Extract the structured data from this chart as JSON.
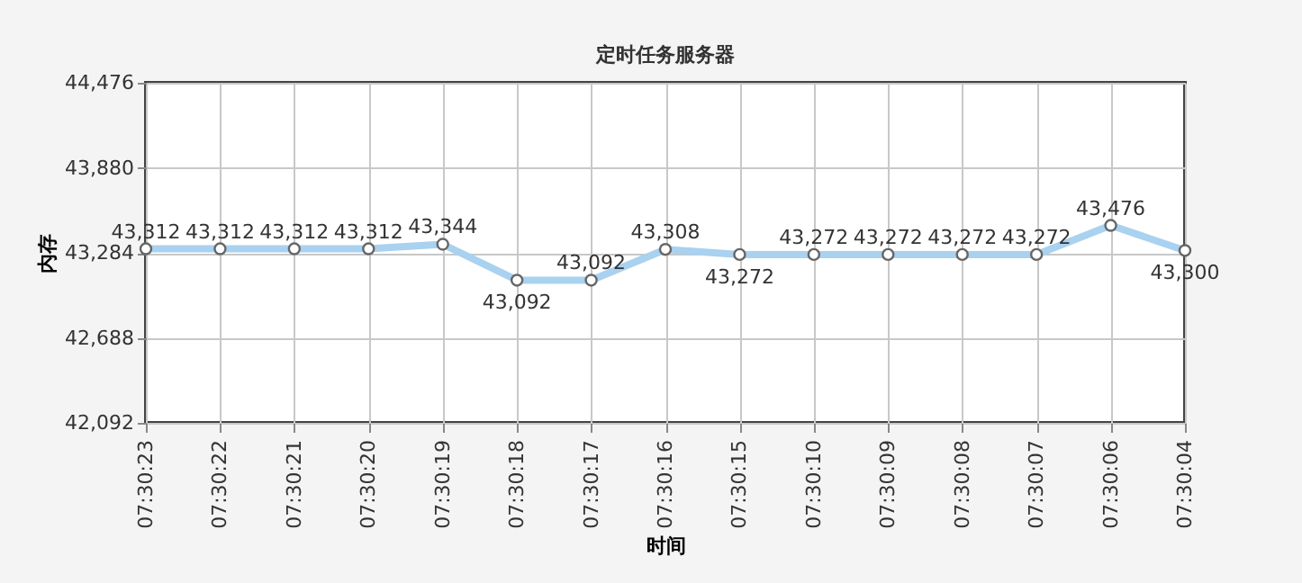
{
  "chart_data": {
    "type": "line",
    "title": "定时任务服务器",
    "xlabel": "时间",
    "ylabel": "内存",
    "categories": [
      "07:30:23",
      "07:30:22",
      "07:30:21",
      "07:30:20",
      "07:30:19",
      "07:30:18",
      "07:30:17",
      "07:30:16",
      "07:30:15",
      "07:30:10",
      "07:30:09",
      "07:30:08",
      "07:30:07",
      "07:30:06",
      "07:30:04"
    ],
    "series": [
      {
        "color": "#a9d1f0",
        "values": [
          43312,
          43312,
          43312,
          43312,
          43344,
          43092,
          43092,
          43308,
          43272,
          43272,
          43272,
          43272,
          43272,
          43476,
          43300
        ],
        "value_labels": [
          "43,312",
          "43,312",
          "43,312",
          "43,312",
          "43,344",
          "43,092",
          "43,092",
          "43,308",
          "43,272",
          "43,272",
          "43,272",
          "43,272",
          "43,272",
          "43,476",
          "43,300"
        ]
      }
    ],
    "ylim": [
      42092,
      44476
    ],
    "yticks": [
      {
        "value": 42092,
        "label": "42,092"
      },
      {
        "value": 42688,
        "label": "42,688"
      },
      {
        "value": 43284,
        "label": "43,284"
      },
      {
        "value": 43880,
        "label": "43,880"
      },
      {
        "value": 44476,
        "label": "44,476"
      }
    ],
    "grid": true,
    "marker": "circle"
  }
}
